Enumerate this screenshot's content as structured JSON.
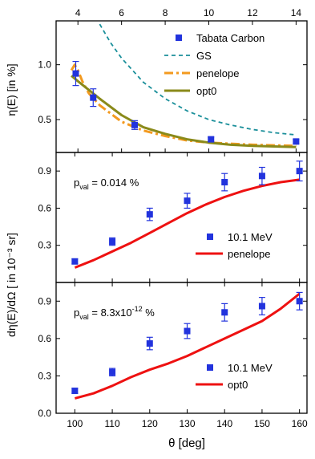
{
  "figure": {
    "ylabel_top": "η(E) [in %]",
    "ylabel_bottom": "dη(E)/dΩ [ in 10⁻³ sr]",
    "xlabel_theta": "θ [deg]"
  },
  "chart_data": [
    {
      "type": "scatter",
      "panel": "top",
      "ylabel": "η(E) [in %]",
      "xlabel": "",
      "xlim": [
        3,
        14.5
      ],
      "ylim": [
        0.2,
        1.4
      ],
      "x_ticks": [
        4,
        6,
        8,
        10,
        12,
        14
      ],
      "y_ticks": [
        0.5,
        1.0
      ],
      "y_tick_labels": [
        "0.5",
        "1.0"
      ],
      "legend_position": "top-right",
      "points_series": {
        "name": "Tabata Carbon",
        "color": "#2233dd",
        "points": [
          {
            "x": 3.9,
            "y": 0.92,
            "err": 0.11
          },
          {
            "x": 4.7,
            "y": 0.7,
            "err": 0.08
          },
          {
            "x": 6.6,
            "y": 0.45,
            "err": 0.04
          },
          {
            "x": 10.1,
            "y": 0.32,
            "err": 0.02
          },
          {
            "x": 14.0,
            "y": 0.3,
            "err": 0.02
          }
        ]
      },
      "line_series": [
        {
          "name": "GS",
          "color": "#1a8f9a",
          "dash": "dashed",
          "x": [
            5.0,
            5.5,
            6,
            7,
            8,
            9,
            10,
            11,
            12,
            13,
            14
          ],
          "y": [
            1.37,
            1.2,
            1.06,
            0.84,
            0.69,
            0.58,
            0.5,
            0.45,
            0.41,
            0.38,
            0.36
          ]
        },
        {
          "name": "penelope",
          "color": "#f39a1f",
          "dash": "dashdot",
          "x": [
            3.7,
            3.85,
            4.0,
            4.2,
            4.5,
            5,
            6,
            7,
            8,
            9,
            10,
            11,
            12,
            13,
            14
          ],
          "y": [
            0.95,
            1.0,
            0.95,
            0.85,
            0.74,
            0.63,
            0.48,
            0.4,
            0.35,
            0.31,
            0.29,
            0.28,
            0.27,
            0.265,
            0.26
          ]
        },
        {
          "name": "opt0",
          "color": "#8a8a1a",
          "dash": "solid",
          "x": [
            3.7,
            4.0,
            4.5,
            5,
            6,
            7,
            8,
            9,
            10,
            11,
            12,
            13,
            14
          ],
          "y": [
            0.9,
            0.85,
            0.77,
            0.69,
            0.54,
            0.43,
            0.37,
            0.32,
            0.29,
            0.27,
            0.26,
            0.255,
            0.25
          ]
        }
      ]
    },
    {
      "type": "scatter",
      "panel": "middle",
      "annotation": "p_val = 0.014 %",
      "annotation_main": "p",
      "annotation_sub": "val",
      "annotation_rest": " = 0.014 %",
      "xlim": [
        95,
        162
      ],
      "ylim": [
        0.0,
        1.05
      ],
      "y_ticks": [
        0.3,
        0.6,
        0.9
      ],
      "y_tick_labels": [
        "0.3",
        "0.6",
        "0.9"
      ],
      "legend_position": "bottom-right",
      "points_series": {
        "name": "10.1 MeV",
        "color": "#2233dd",
        "points": [
          {
            "x": 100,
            "y": 0.17,
            "err": 0.02
          },
          {
            "x": 110,
            "y": 0.33,
            "err": 0.03
          },
          {
            "x": 120,
            "y": 0.55,
            "err": 0.05
          },
          {
            "x": 130,
            "y": 0.66,
            "err": 0.06
          },
          {
            "x": 140,
            "y": 0.81,
            "err": 0.07
          },
          {
            "x": 150,
            "y": 0.86,
            "err": 0.07
          },
          {
            "x": 160,
            "y": 0.9,
            "err": 0.08
          }
        ]
      },
      "line_series": [
        {
          "name": "penelope",
          "color": "#ee1111",
          "dash": "solid",
          "x": [
            100,
            105,
            110,
            115,
            120,
            125,
            130,
            135,
            140,
            145,
            150,
            155,
            160
          ],
          "y": [
            0.12,
            0.18,
            0.25,
            0.32,
            0.4,
            0.48,
            0.56,
            0.63,
            0.69,
            0.74,
            0.78,
            0.81,
            0.83
          ]
        }
      ]
    },
    {
      "type": "scatter",
      "panel": "bottom",
      "annotation": "p_val = 8.3x10^-12 %",
      "annotation_main": "p",
      "annotation_sub": "val",
      "annotation_mid": " = 8.3x10",
      "annotation_sup": "-12",
      "annotation_rest": " %",
      "xlim": [
        95,
        162
      ],
      "ylim": [
        0.0,
        1.05
      ],
      "x_ticks": [
        100,
        110,
        120,
        130,
        140,
        150,
        160
      ],
      "y_ticks": [
        0.0,
        0.3,
        0.6,
        0.9
      ],
      "y_tick_labels": [
        "0.0",
        "0.3",
        "0.6",
        "0.9"
      ],
      "xlabel": "θ [deg]",
      "legend_position": "bottom-right",
      "points_series": {
        "name": "10.1 MeV",
        "color": "#2233dd",
        "points": [
          {
            "x": 100,
            "y": 0.18,
            "err": 0.02
          },
          {
            "x": 110,
            "y": 0.33,
            "err": 0.03
          },
          {
            "x": 120,
            "y": 0.56,
            "err": 0.05
          },
          {
            "x": 130,
            "y": 0.66,
            "err": 0.06
          },
          {
            "x": 140,
            "y": 0.81,
            "err": 0.07
          },
          {
            "x": 150,
            "y": 0.86,
            "err": 0.07
          },
          {
            "x": 160,
            "y": 0.9,
            "err": 0.07
          }
        ]
      },
      "line_series": [
        {
          "name": "opt0",
          "color": "#ee1111",
          "dash": "solid",
          "x": [
            100,
            105,
            110,
            115,
            120,
            125,
            130,
            135,
            140,
            145,
            150,
            155,
            160
          ],
          "y": [
            0.12,
            0.16,
            0.22,
            0.29,
            0.35,
            0.4,
            0.46,
            0.53,
            0.6,
            0.67,
            0.74,
            0.84,
            0.96
          ]
        }
      ]
    }
  ]
}
